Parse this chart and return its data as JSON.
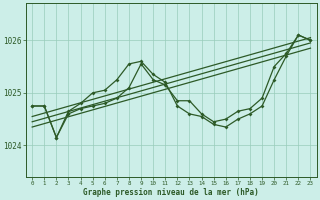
{
  "title": "Graphe pression niveau de la mer (hPa)",
  "bg_color": "#cceee8",
  "line_color": "#2d5a27",
  "grid_color": "#99ccbb",
  "xlim": [
    -0.5,
    23.5
  ],
  "ylim": [
    1023.4,
    1026.7
  ],
  "yticks": [
    1024,
    1025,
    1026
  ],
  "xticks": [
    0,
    1,
    2,
    3,
    4,
    5,
    6,
    7,
    8,
    9,
    10,
    11,
    12,
    13,
    14,
    15,
    16,
    17,
    18,
    19,
    20,
    21,
    22,
    23
  ],
  "series1_x": [
    0,
    1,
    2,
    3,
    4,
    5,
    6,
    7,
    8,
    9,
    10,
    11,
    12,
    13,
    14,
    15,
    16,
    17,
    18,
    19,
    20,
    21,
    22,
    23
  ],
  "series1_y": [
    1024.75,
    1024.75,
    1024.15,
    1024.65,
    1024.8,
    1025.0,
    1025.05,
    1025.25,
    1025.55,
    1025.6,
    1025.35,
    1025.2,
    1024.75,
    1024.6,
    1024.55,
    1024.4,
    1024.35,
    1024.5,
    1024.6,
    1024.75,
    1025.25,
    1025.7,
    1026.1,
    1026.0
  ],
  "series2_x": [
    0,
    1,
    2,
    3,
    4,
    5,
    6,
    7,
    8,
    9,
    10,
    11,
    12,
    13,
    14,
    15,
    16,
    17,
    18,
    19,
    20,
    21,
    22,
    23
  ],
  "series2_y": [
    1024.75,
    1024.75,
    1024.15,
    1024.6,
    1024.7,
    1024.75,
    1024.8,
    1024.9,
    1025.1,
    1025.55,
    1025.25,
    1025.15,
    1024.85,
    1024.85,
    1024.6,
    1024.45,
    1024.5,
    1024.65,
    1024.7,
    1024.9,
    1025.5,
    1025.75,
    1026.1,
    1026.0
  ],
  "trend1_x": [
    0,
    23
  ],
  "trend1_y": [
    1024.55,
    1026.05
  ],
  "trend2_x": [
    0,
    23
  ],
  "trend2_y": [
    1024.45,
    1025.95
  ],
  "trend3_x": [
    0,
    23
  ],
  "trend3_y": [
    1024.35,
    1025.85
  ]
}
